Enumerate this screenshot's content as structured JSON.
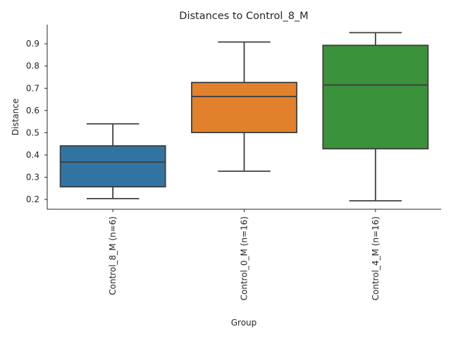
{
  "chart_data": {
    "type": "box",
    "title": "Distances to Control_8_M",
    "xlabel": "Group",
    "ylabel": "Distance",
    "ylim": [
      0.156,
      0.986
    ],
    "yticks": [
      0.2,
      0.3,
      0.4,
      0.5,
      0.6,
      0.7,
      0.8,
      0.9
    ],
    "ytick_labels": [
      "0.2",
      "0.3",
      "0.4",
      "0.5",
      "0.6",
      "0.7",
      "0.8",
      "0.9"
    ],
    "grid": false,
    "categories": [
      "Control_8_M (n=6)",
      "Control_0_M (n=16)",
      "Control_4_M (n=16)"
    ],
    "colors": [
      "#3274a1",
      "#e1812c",
      "#3a923a"
    ],
    "boxes": [
      {
        "whisker_low": 0.204,
        "q1": 0.257,
        "median": 0.368,
        "q3": 0.441,
        "whisker_high": 0.54
      },
      {
        "whisker_low": 0.327,
        "q1": 0.501,
        "median": 0.663,
        "q3": 0.726,
        "whisker_high": 0.908
      },
      {
        "whisker_low": 0.194,
        "q1": 0.428,
        "median": 0.715,
        "q3": 0.893,
        "whisker_high": 0.95
      }
    ]
  }
}
